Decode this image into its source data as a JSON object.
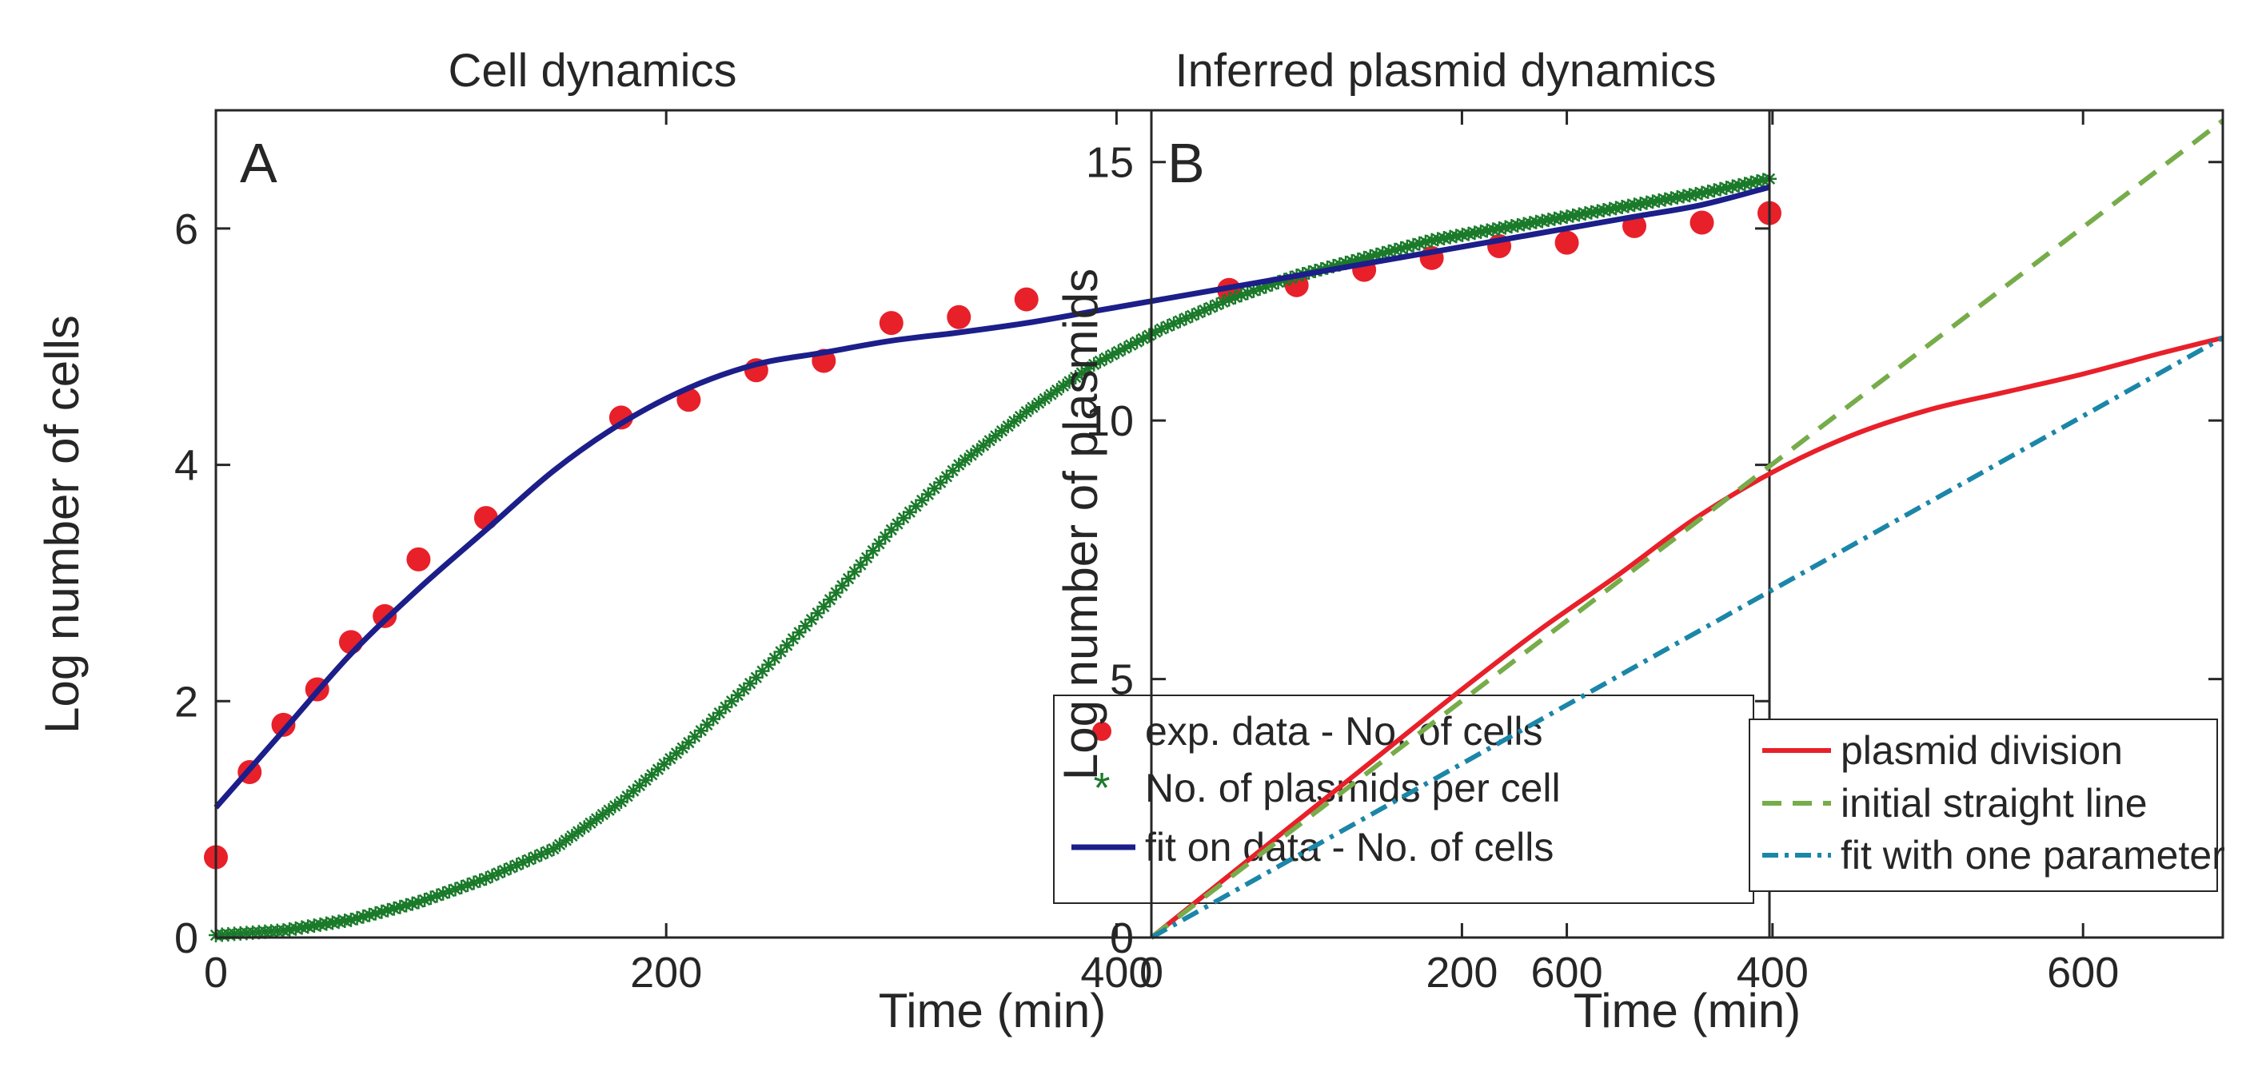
{
  "chart_data": [
    {
      "panel_label": "A",
      "type": "scatter",
      "title": "Cell dynamics",
      "xlabel": "Time (min)",
      "ylabel": "Log number of cells",
      "xlim": [
        0,
        690
      ],
      "ylim": [
        0,
        7
      ],
      "xticks": [
        0,
        200,
        400,
        600
      ],
      "yticks": [
        0,
        2,
        4,
        6
      ],
      "legend_position": "bottom-right",
      "series": [
        {
          "name": "exp. data - No. of cells",
          "style": "dots",
          "color": "#e8202a",
          "x": [
            0,
            15,
            30,
            45,
            60,
            75,
            90,
            120,
            180,
            210,
            240,
            270,
            300,
            330,
            360,
            450,
            480,
            510,
            540,
            570,
            600,
            630,
            660,
            690
          ],
          "y": [
            0.68,
            1.4,
            1.8,
            2.1,
            2.5,
            2.72,
            3.2,
            3.55,
            4.4,
            4.55,
            4.8,
            4.88,
            5.2,
            5.25,
            5.4,
            5.48,
            5.52,
            5.65,
            5.75,
            5.85,
            5.88,
            6.02,
            6.05,
            6.13
          ]
        },
        {
          "name": "No. of plasmids per cell",
          "style": "stars",
          "color": "#1a7a2a",
          "x": [
            0,
            30,
            60,
            90,
            120,
            150,
            180,
            210,
            240,
            270,
            300,
            330,
            360,
            390,
            420,
            450,
            480,
            510,
            540,
            570,
            600,
            630,
            660,
            690
          ],
          "y": [
            0.02,
            0.06,
            0.15,
            0.3,
            0.5,
            0.75,
            1.15,
            1.65,
            2.2,
            2.8,
            3.45,
            4.0,
            4.45,
            4.85,
            5.15,
            5.4,
            5.6,
            5.75,
            5.9,
            6.0,
            6.1,
            6.2,
            6.3,
            6.42
          ]
        },
        {
          "name": "fit on data - No. of cells",
          "style": "line",
          "color": "#1c1e8a",
          "x": [
            0,
            30,
            60,
            90,
            120,
            150,
            180,
            210,
            240,
            270,
            300,
            330,
            360,
            390,
            420,
            450,
            480,
            510,
            540,
            570,
            600,
            630,
            660,
            690
          ],
          "y": [
            1.1,
            1.75,
            2.4,
            2.95,
            3.45,
            3.95,
            4.35,
            4.65,
            4.85,
            4.95,
            5.05,
            5.12,
            5.2,
            5.3,
            5.4,
            5.5,
            5.6,
            5.7,
            5.8,
            5.9,
            6.0,
            6.1,
            6.2,
            6.35
          ]
        }
      ]
    },
    {
      "panel_label": "B",
      "type": "line",
      "title": "Inferred plasmid dynamics",
      "xlabel": "Time (min)",
      "ylabel": "Log number of plasmids",
      "xlim": [
        0,
        690
      ],
      "ylim": [
        0,
        16
      ],
      "xticks": [
        0,
        200,
        400,
        600
      ],
      "yticks": [
        0,
        5,
        10,
        15
      ],
      "legend_position": "bottom-right",
      "series": [
        {
          "name": "plasmid division",
          "style": "solid",
          "color": "#e8202a",
          "x": [
            0,
            50,
            100,
            150,
            200,
            250,
            300,
            350,
            400,
            450,
            500,
            550,
            600,
            650,
            690
          ],
          "y": [
            0,
            1.2,
            2.4,
            3.6,
            4.8,
            5.95,
            7.0,
            8.1,
            9.0,
            9.7,
            10.2,
            10.55,
            10.9,
            11.3,
            11.6
          ]
        },
        {
          "name": "initial straight line",
          "style": "dashed",
          "color": "#77ac4a",
          "x": [
            0,
            690
          ],
          "y": [
            0,
            15.8
          ]
        },
        {
          "name": "fit with one parameter",
          "style": "dashdot",
          "color": "#1b86a8",
          "x": [
            0,
            690
          ],
          "y": [
            0,
            11.6
          ]
        }
      ]
    }
  ]
}
